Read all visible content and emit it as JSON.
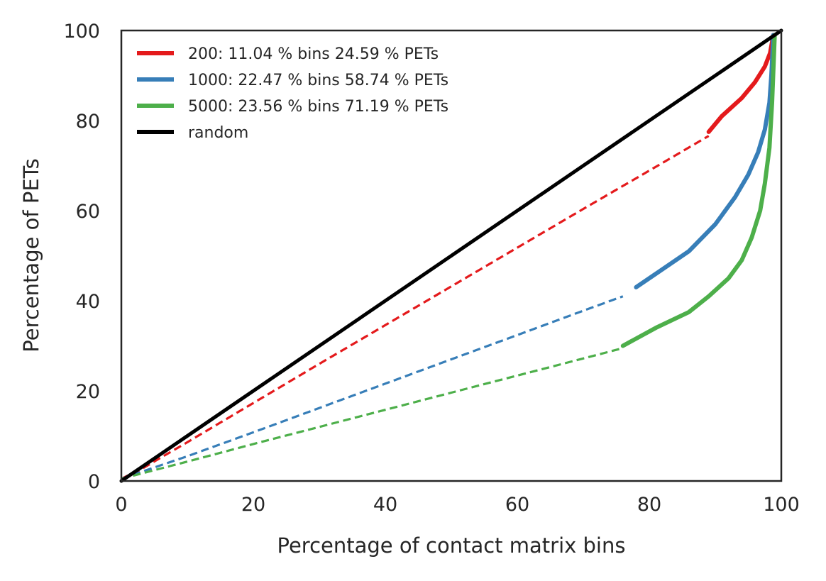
{
  "chart_data": {
    "type": "line",
    "title": "",
    "xlabel": "Percentage of contact matrix bins",
    "ylabel": "Percentage of PETs",
    "xlim": [
      0,
      100
    ],
    "ylim": [
      0,
      100
    ],
    "xticks": [
      "0",
      "20",
      "40",
      "60",
      "80",
      "100"
    ],
    "yticks": [
      "0",
      "20",
      "40",
      "60",
      "80",
      "100"
    ],
    "grid": false,
    "legend_position": "upper-left",
    "series": [
      {
        "name": "200: 11.04 % bins 24.59 % PETs",
        "color": "#e41a1c",
        "dashed": {
          "x": [
            0,
            3,
            6,
            10,
            20,
            30,
            40,
            50,
            60,
            70,
            80,
            89
          ],
          "y": [
            0.5,
            2.6,
            5.2,
            8.6,
            17.3,
            26,
            34.6,
            43.2,
            51.8,
            60.4,
            68.9,
            76.6
          ]
        },
        "solid": {
          "x": [
            89,
            91,
            94,
            96,
            97.5,
            98.3,
            98.8
          ],
          "y": [
            77.5,
            81,
            85,
            88.5,
            92,
            95,
            99
          ]
        }
      },
      {
        "name": "1000: 22.47 % bins 58.74 % PETs",
        "color": "#377eb8",
        "dashed": {
          "x": [
            0,
            10,
            20,
            30,
            40,
            50,
            60,
            70,
            76
          ],
          "y": [
            0.5,
            5.5,
            10.8,
            16.2,
            21.6,
            27,
            32.4,
            37.8,
            41
          ]
        },
        "solid": {
          "x": [
            78,
            81,
            86,
            90,
            93,
            95,
            96.5,
            97.5,
            98.2,
            98.5,
            98.8
          ],
          "y": [
            43,
            46,
            51,
            57,
            63,
            68,
            73,
            78,
            84,
            90,
            99
          ]
        }
      },
      {
        "name": "5000: 23.56 % bins 71.19 % PETs",
        "color": "#4daf4a",
        "dashed": {
          "x": [
            0,
            10,
            20,
            30,
            40,
            50,
            60,
            70,
            76
          ],
          "y": [
            0.5,
            4.3,
            8.2,
            12,
            15.8,
            19.6,
            23.4,
            27.2,
            29.5
          ]
        },
        "solid": {
          "x": [
            76,
            81,
            86,
            89,
            92,
            94,
            95.5,
            96.8,
            97.5,
            98.2,
            98.6,
            99
          ],
          "y": [
            30,
            34,
            37.5,
            41,
            45,
            49,
            54,
            60,
            66,
            74,
            84,
            99
          ]
        }
      },
      {
        "name": "random",
        "color": "#000000",
        "solid": {
          "x": [
            0,
            100
          ],
          "y": [
            0,
            100
          ]
        }
      }
    ]
  }
}
